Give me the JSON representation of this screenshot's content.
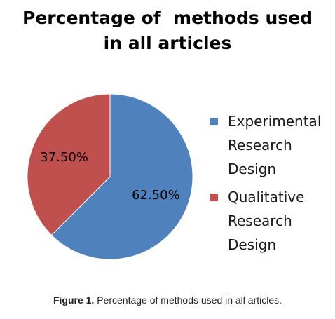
{
  "chart_data": {
    "type": "pie",
    "title": "Percentage of  methods used in all articles",
    "categories": [
      "Experimental Research Design",
      "Qualitative Research Design"
    ],
    "values": [
      62.5,
      37.5
    ],
    "data_labels": [
      "62.50%",
      "37.50%"
    ],
    "colors": [
      "#4f81bd",
      "#c0504d"
    ],
    "legend": "right"
  },
  "caption": {
    "prefix": "Figure 1.",
    "text": " Percentage of methods used in all articles."
  }
}
